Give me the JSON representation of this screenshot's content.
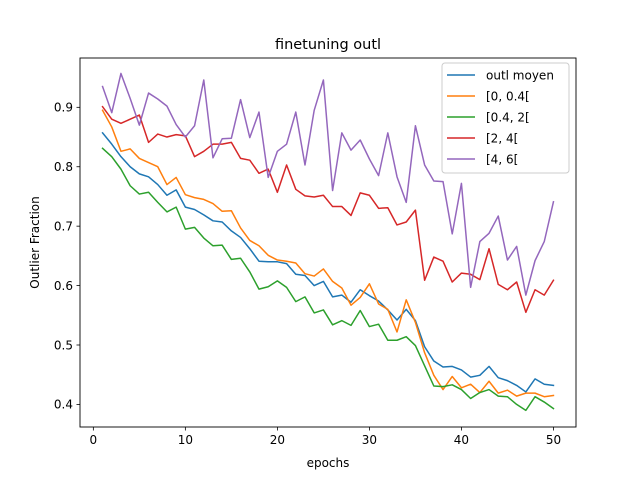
{
  "chart_data": {
    "type": "line",
    "title": "finetuning outl",
    "xlabel": "epochs",
    "ylabel": "Outlier Fraction",
    "xlim": [
      -1.45,
      52.45
    ],
    "ylim": [
      0.362,
      0.983
    ],
    "xticks": [
      0,
      10,
      20,
      30,
      40,
      50
    ],
    "yticks": [
      0.4,
      0.5,
      0.6,
      0.7,
      0.8,
      0.9
    ],
    "ytick_labels": [
      "0.4",
      "0.5",
      "0.6",
      "0.7",
      "0.8",
      "0.9"
    ],
    "grid": false,
    "legend_position": "upper right",
    "x": [
      1,
      2,
      3,
      4,
      5,
      6,
      7,
      8,
      9,
      10,
      11,
      12,
      13,
      14,
      15,
      16,
      17,
      18,
      19,
      20,
      21,
      22,
      23,
      24,
      25,
      26,
      27,
      28,
      29,
      30,
      31,
      32,
      33,
      34,
      35,
      36,
      37,
      38,
      39,
      40,
      41,
      42,
      43,
      44,
      45,
      46,
      47,
      48,
      49,
      50
    ],
    "series": [
      {
        "name": "outl moyen",
        "color": "#1f77b4",
        "values": [
          0.857,
          0.838,
          0.817,
          0.8,
          0.788,
          0.783,
          0.77,
          0.752,
          0.761,
          0.732,
          0.728,
          0.719,
          0.709,
          0.707,
          0.692,
          0.681,
          0.662,
          0.641,
          0.64,
          0.64,
          0.637,
          0.619,
          0.617,
          0.6,
          0.607,
          0.581,
          0.584,
          0.572,
          0.593,
          0.583,
          0.574,
          0.559,
          0.542,
          0.56,
          0.541,
          0.497,
          0.473,
          0.463,
          0.464,
          0.458,
          0.446,
          0.449,
          0.464,
          0.445,
          0.44,
          0.432,
          0.421,
          0.443,
          0.434,
          0.432
        ]
      },
      {
        "name": "[0, 0.4[",
        "color": "#ff7f0e",
        "values": [
          0.895,
          0.867,
          0.826,
          0.83,
          0.814,
          0.807,
          0.8,
          0.77,
          0.782,
          0.753,
          0.748,
          0.745,
          0.738,
          0.725,
          0.726,
          0.697,
          0.676,
          0.667,
          0.651,
          0.643,
          0.641,
          0.638,
          0.62,
          0.616,
          0.628,
          0.607,
          0.596,
          0.567,
          0.58,
          0.603,
          0.569,
          0.56,
          0.522,
          0.576,
          0.538,
          0.487,
          0.449,
          0.425,
          0.447,
          0.428,
          0.434,
          0.42,
          0.439,
          0.419,
          0.424,
          0.414,
          0.419,
          0.419,
          0.413,
          0.415
        ]
      },
      {
        "name": "[0.4, 2[",
        "color": "#2ca02c",
        "values": [
          0.831,
          0.817,
          0.796,
          0.768,
          0.754,
          0.757,
          0.74,
          0.724,
          0.732,
          0.695,
          0.698,
          0.68,
          0.667,
          0.668,
          0.644,
          0.646,
          0.623,
          0.594,
          0.598,
          0.608,
          0.597,
          0.573,
          0.581,
          0.554,
          0.559,
          0.534,
          0.541,
          0.533,
          0.558,
          0.531,
          0.535,
          0.508,
          0.508,
          0.514,
          0.499,
          0.465,
          0.431,
          0.43,
          0.433,
          0.425,
          0.41,
          0.42,
          0.425,
          0.414,
          0.413,
          0.4,
          0.39,
          0.413,
          0.404,
          0.393
        ]
      },
      {
        "name": "[2, 4[",
        "color": "#d62728",
        "values": [
          0.901,
          0.88,
          0.873,
          0.88,
          0.887,
          0.841,
          0.855,
          0.85,
          0.854,
          0.852,
          0.817,
          0.826,
          0.838,
          0.838,
          0.841,
          0.814,
          0.811,
          0.789,
          0.796,
          0.757,
          0.803,
          0.762,
          0.751,
          0.749,
          0.752,
          0.733,
          0.733,
          0.718,
          0.756,
          0.752,
          0.73,
          0.731,
          0.702,
          0.707,
          0.727,
          0.609,
          0.648,
          0.641,
          0.606,
          0.621,
          0.619,
          0.61,
          0.662,
          0.602,
          0.593,
          0.606,
          0.555,
          0.593,
          0.584,
          0.609
        ]
      },
      {
        "name": "[4, 6[",
        "color": "#9467bd",
        "values": [
          0.935,
          0.891,
          0.957,
          0.915,
          0.87,
          0.924,
          0.914,
          0.902,
          0.871,
          0.85,
          0.869,
          0.946,
          0.815,
          0.847,
          0.848,
          0.913,
          0.849,
          0.892,
          0.782,
          0.826,
          0.838,
          0.892,
          0.803,
          0.895,
          0.946,
          0.76,
          0.857,
          0.828,
          0.845,
          0.813,
          0.785,
          0.857,
          0.783,
          0.74,
          0.869,
          0.803,
          0.776,
          0.775,
          0.687,
          0.772,
          0.597,
          0.674,
          0.688,
          0.717,
          0.643,
          0.666,
          0.584,
          0.642,
          0.674,
          0.741
        ]
      }
    ]
  }
}
